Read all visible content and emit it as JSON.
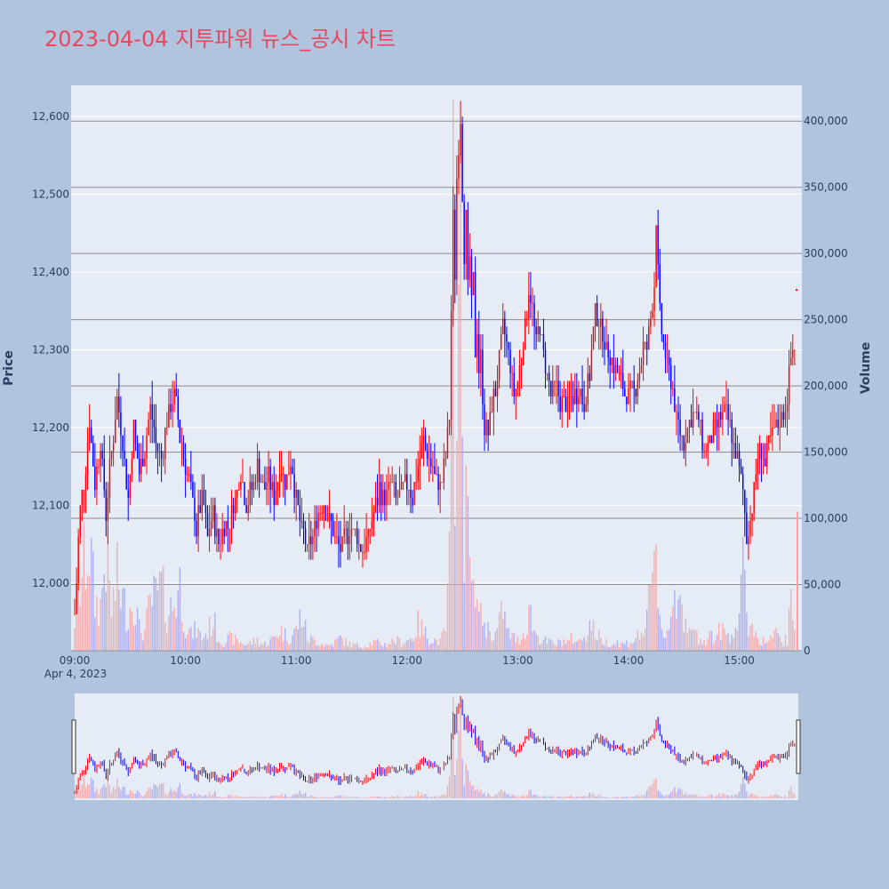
{
  "title": "2023-04-04 지투파워 뉴스_공시 차트",
  "chart_data": {
    "type": "candlestick",
    "title": "2023-04-04 지투파워 뉴스_공시 차트",
    "date_label": "Apr 4, 2023",
    "ylabel": "Price",
    "y2label": "Volume",
    "price_ticks": [
      "12,000",
      "12,100",
      "12,200",
      "12,300",
      "12,400",
      "12,500",
      "12,600"
    ],
    "price_tick_values": [
      12000,
      12100,
      12200,
      12300,
      12400,
      12500,
      12600
    ],
    "volume_ticks": [
      "0",
      "50,000",
      "100,000",
      "150,000",
      "200,000",
      "250,000",
      "300,000",
      "350,000",
      "400,000"
    ],
    "volume_tick_values": [
      0,
      50000,
      100000,
      150000,
      200000,
      250000,
      300000,
      350000,
      400000
    ],
    "x_ticks": [
      "09:00",
      "10:00",
      "11:00",
      "12:00",
      "13:00",
      "14:00",
      "15:00"
    ],
    "x_tick_minutes": [
      540,
      600,
      660,
      720,
      780,
      840,
      900
    ],
    "x_range_minutes": [
      540,
      932
    ],
    "price_range": [
      11913,
      12640
    ],
    "volume_range": [
      0,
      427000
    ],
    "up_color": "#ff0000",
    "down_color": "#0000ff",
    "colors": {
      "background": "#b0c4de",
      "plot_background": "#e5ecf6",
      "title": "#e8475f",
      "axis_text": "#2a3f5f"
    },
    "range_slider": true,
    "price_path": [
      [
        540,
        11960
      ],
      [
        543,
        12100
      ],
      [
        546,
        12150
      ],
      [
        548,
        12210
      ],
      [
        551,
        12130
      ],
      [
        554,
        12180
      ],
      [
        557,
        12090
      ],
      [
        560,
        12170
      ],
      [
        563,
        12240
      ],
      [
        566,
        12180
      ],
      [
        569,
        12110
      ],
      [
        572,
        12200
      ],
      [
        575,
        12140
      ],
      [
        578,
        12170
      ],
      [
        581,
        12230
      ],
      [
        584,
        12180
      ],
      [
        587,
        12160
      ],
      [
        590,
        12210
      ],
      [
        594,
        12240
      ],
      [
        597,
        12190
      ],
      [
        600,
        12150
      ],
      [
        603,
        12120
      ],
      [
        606,
        12070
      ],
      [
        609,
        12110
      ],
      [
        612,
        12060
      ],
      [
        615,
        12090
      ],
      [
        618,
        12050
      ],
      [
        621,
        12070
      ],
      [
        624,
        12080
      ],
      [
        627,
        12110
      ],
      [
        630,
        12140
      ],
      [
        633,
        12100
      ],
      [
        636,
        12120
      ],
      [
        639,
        12150
      ],
      [
        642,
        12120
      ],
      [
        645,
        12140
      ],
      [
        648,
        12110
      ],
      [
        651,
        12150
      ],
      [
        654,
        12130
      ],
      [
        657,
        12160
      ],
      [
        660,
        12110
      ],
      [
        663,
        12070
      ],
      [
        666,
        12040
      ],
      [
        669,
        12060
      ],
      [
        672,
        12090
      ],
      [
        675,
        12100
      ],
      [
        678,
        12080
      ],
      [
        681,
        12060
      ],
      [
        684,
        12040
      ],
      [
        687,
        12060
      ],
      [
        690,
        12070
      ],
      [
        693,
        12060
      ],
      [
        696,
        12040
      ],
      [
        699,
        12060
      ],
      [
        702,
        12090
      ],
      [
        705,
        12120
      ],
      [
        708,
        12110
      ],
      [
        711,
        12130
      ],
      [
        714,
        12110
      ],
      [
        717,
        12120
      ],
      [
        720,
        12130
      ],
      [
        723,
        12110
      ],
      [
        726,
        12150
      ],
      [
        729,
        12180
      ],
      [
        732,
        12160
      ],
      [
        735,
        12140
      ],
      [
        738,
        12120
      ],
      [
        741,
        12160
      ],
      [
        743,
        12210
      ],
      [
        744,
        12350
      ],
      [
        745,
        12470
      ],
      [
        746,
        12400
      ],
      [
        747,
        12520
      ],
      [
        748,
        12560
      ],
      [
        749,
        12600
      ],
      [
        750,
        12500
      ],
      [
        751,
        12420
      ],
      [
        752,
        12470
      ],
      [
        753,
        12380
      ],
      [
        754,
        12420
      ],
      [
        755,
        12360
      ],
      [
        756,
        12390
      ],
      [
        757,
        12300
      ],
      [
        758,
        12330
      ],
      [
        759,
        12270
      ],
      [
        760,
        12290
      ],
      [
        761,
        12240
      ],
      [
        762,
        12200
      ],
      [
        764,
        12190
      ],
      [
        766,
        12230
      ],
      [
        768,
        12250
      ],
      [
        770,
        12290
      ],
      [
        772,
        12330
      ],
      [
        774,
        12310
      ],
      [
        776,
        12280
      ],
      [
        778,
        12240
      ],
      [
        780,
        12260
      ],
      [
        782,
        12290
      ],
      [
        784,
        12330
      ],
      [
        786,
        12380
      ],
      [
        788,
        12350
      ],
      [
        790,
        12310
      ],
      [
        792,
        12330
      ],
      [
        794,
        12290
      ],
      [
        796,
        12270
      ],
      [
        798,
        12240
      ],
      [
        801,
        12250
      ],
      [
        804,
        12230
      ],
      [
        807,
        12230
      ],
      [
        810,
        12240
      ],
      [
        813,
        12250
      ],
      [
        816,
        12230
      ],
      [
        819,
        12270
      ],
      [
        822,
        12350
      ],
      [
        825,
        12330
      ],
      [
        828,
        12300
      ],
      [
        831,
        12290
      ],
      [
        834,
        12270
      ],
      [
        837,
        12250
      ],
      [
        840,
        12240
      ],
      [
        843,
        12250
      ],
      [
        846,
        12270
      ],
      [
        848,
        12310
      ],
      [
        850,
        12300
      ],
      [
        852,
        12340
      ],
      [
        854,
        12380
      ],
      [
        855,
        12470
      ],
      [
        856,
        12400
      ],
      [
        857,
        12350
      ],
      [
        858,
        12320
      ],
      [
        860,
        12290
      ],
      [
        862,
        12270
      ],
      [
        864,
        12250
      ],
      [
        866,
        12210
      ],
      [
        868,
        12190
      ],
      [
        870,
        12180
      ],
      [
        872,
        12200
      ],
      [
        875,
        12220
      ],
      [
        878,
        12210
      ],
      [
        881,
        12170
      ],
      [
        884,
        12180
      ],
      [
        887,
        12200
      ],
      [
        890,
        12210
      ],
      [
        893,
        12220
      ],
      [
        896,
        12190
      ],
      [
        899,
        12160
      ],
      [
        902,
        12120
      ],
      [
        904,
        12060
      ],
      [
        906,
        12080
      ],
      [
        908,
        12120
      ],
      [
        910,
        12160
      ],
      [
        912,
        12170
      ],
      [
        914,
        12150
      ],
      [
        916,
        12180
      ],
      [
        918,
        12190
      ],
      [
        920,
        12200
      ],
      [
        922,
        12210
      ],
      [
        924,
        12220
      ],
      [
        926,
        12240
      ],
      [
        928,
        12290
      ],
      [
        930,
        12310
      ]
    ],
    "volume_profile": [
      [
        540,
        30000
      ],
      [
        543,
        60000
      ],
      [
        546,
        90000
      ],
      [
        548,
        100000
      ],
      [
        551,
        45000
      ],
      [
        554,
        42000
      ],
      [
        557,
        95000
      ],
      [
        560,
        38000
      ],
      [
        563,
        66000
      ],
      [
        566,
        48000
      ],
      [
        569,
        34000
      ],
      [
        572,
        55000
      ],
      [
        575,
        20000
      ],
      [
        578,
        18000
      ],
      [
        581,
        45000
      ],
      [
        584,
        50000
      ],
      [
        587,
        60000
      ],
      [
        590,
        35000
      ],
      [
        594,
        45000
      ],
      [
        597,
        62000
      ],
      [
        600,
        25000
      ],
      [
        603,
        15000
      ],
      [
        606,
        20000
      ],
      [
        609,
        12000
      ],
      [
        612,
        18000
      ],
      [
        615,
        30000
      ],
      [
        618,
        10000
      ],
      [
        621,
        8000
      ],
      [
        624,
        12000
      ],
      [
        627,
        10000
      ],
      [
        630,
        8000
      ],
      [
        633,
        6000
      ],
      [
        636,
        8000
      ],
      [
        639,
        10000
      ],
      [
        642,
        6000
      ],
      [
        645,
        8000
      ],
      [
        648,
        12000
      ],
      [
        651,
        20000
      ],
      [
        654,
        15000
      ],
      [
        657,
        12000
      ],
      [
        660,
        20000
      ],
      [
        663,
        35000
      ],
      [
        666,
        12000
      ],
      [
        669,
        10000
      ],
      [
        672,
        8000
      ],
      [
        675,
        6000
      ],
      [
        678,
        5000
      ],
      [
        681,
        8000
      ],
      [
        684,
        12000
      ],
      [
        687,
        8000
      ],
      [
        690,
        6000
      ],
      [
        693,
        5000
      ],
      [
        696,
        4000
      ],
      [
        699,
        6000
      ],
      [
        702,
        8000
      ],
      [
        705,
        7000
      ],
      [
        708,
        6000
      ],
      [
        711,
        8000
      ],
      [
        714,
        10000
      ],
      [
        717,
        8000
      ],
      [
        720,
        10000
      ],
      [
        723,
        12000
      ],
      [
        726,
        25000
      ],
      [
        729,
        18000
      ],
      [
        732,
        12000
      ],
      [
        735,
        10000
      ],
      [
        738,
        8000
      ],
      [
        741,
        20000
      ],
      [
        743,
        80000
      ],
      [
        744,
        150000
      ],
      [
        745,
        400000
      ],
      [
        746,
        260000
      ],
      [
        747,
        380000
      ],
      [
        748,
        300000
      ],
      [
        749,
        330000
      ],
      [
        750,
        200000
      ],
      [
        751,
        140000
      ],
      [
        752,
        260000
      ],
      [
        753,
        100000
      ],
      [
        754,
        80000
      ],
      [
        755,
        60000
      ],
      [
        756,
        45000
      ],
      [
        757,
        90000
      ],
      [
        758,
        40000
      ],
      [
        759,
        50000
      ],
      [
        760,
        30000
      ],
      [
        761,
        35000
      ],
      [
        762,
        25000
      ],
      [
        764,
        20000
      ],
      [
        766,
        18000
      ],
      [
        768,
        15000
      ],
      [
        770,
        25000
      ],
      [
        772,
        42000
      ],
      [
        774,
        18000
      ],
      [
        776,
        15000
      ],
      [
        778,
        12000
      ],
      [
        780,
        10000
      ],
      [
        782,
        14000
      ],
      [
        784,
        18000
      ],
      [
        786,
        42000
      ],
      [
        788,
        25000
      ],
      [
        790,
        15000
      ],
      [
        792,
        12000
      ],
      [
        794,
        10000
      ],
      [
        796,
        8000
      ],
      [
        798,
        8000
      ],
      [
        801,
        6000
      ],
      [
        804,
        10000
      ],
      [
        807,
        8000
      ],
      [
        810,
        12000
      ],
      [
        813,
        8000
      ],
      [
        816,
        15000
      ],
      [
        819,
        25000
      ],
      [
        822,
        18000
      ],
      [
        825,
        10000
      ],
      [
        828,
        8000
      ],
      [
        831,
        6000
      ],
      [
        834,
        8000
      ],
      [
        837,
        6000
      ],
      [
        840,
        8000
      ],
      [
        843,
        10000
      ],
      [
        846,
        15000
      ],
      [
        848,
        20000
      ],
      [
        850,
        25000
      ],
      [
        852,
        55000
      ],
      [
        854,
        70000
      ],
      [
        855,
        110000
      ],
      [
        856,
        60000
      ],
      [
        857,
        40000
      ],
      [
        858,
        20000
      ],
      [
        860,
        15000
      ],
      [
        862,
        20000
      ],
      [
        864,
        55000
      ],
      [
        866,
        50000
      ],
      [
        868,
        80000
      ],
      [
        870,
        25000
      ],
      [
        872,
        15000
      ],
      [
        875,
        18000
      ],
      [
        878,
        12000
      ],
      [
        881,
        10000
      ],
      [
        884,
        15000
      ],
      [
        887,
        12000
      ],
      [
        890,
        20000
      ],
      [
        893,
        15000
      ],
      [
        896,
        18000
      ],
      [
        899,
        25000
      ],
      [
        902,
        70000
      ],
      [
        904,
        32000
      ],
      [
        906,
        25000
      ],
      [
        908,
        20000
      ],
      [
        910,
        12000
      ],
      [
        912,
        10000
      ],
      [
        914,
        8000
      ],
      [
        916,
        10000
      ],
      [
        918,
        12000
      ],
      [
        920,
        15000
      ],
      [
        922,
        10000
      ],
      [
        924,
        8000
      ],
      [
        926,
        12000
      ],
      [
        928,
        40000
      ],
      [
        930,
        30000
      ]
    ]
  }
}
